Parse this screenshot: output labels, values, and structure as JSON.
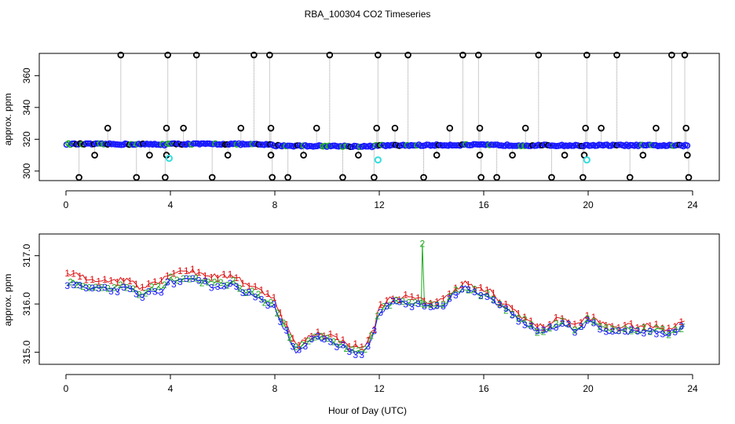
{
  "title": "RBA_100304  CO2 Timeseries",
  "xlabel": "Hour of Day (UTC)",
  "chart_data": [
    {
      "type": "scatter",
      "panel": "top",
      "ylabel": "approx. ppm",
      "xlim": [
        0,
        24
      ],
      "ylim": [
        294,
        374
      ],
      "xticks": [
        "0",
        "4",
        "8",
        "12",
        "16",
        "20",
        "24"
      ],
      "yticks": [
        "300",
        "320",
        "340",
        "360"
      ],
      "colors": {
        "black": "#000000",
        "blue": "#1a1aff",
        "green": "#22aa22",
        "cyan": "#33dddd",
        "gray": "#9a9a9a"
      },
      "baseline": [
        [
          0,
          317
        ],
        [
          3.7,
          316.8
        ],
        [
          3.8,
          316.5
        ],
        [
          3.9,
          317
        ],
        [
          6.3,
          317
        ],
        [
          7.9,
          316.5
        ],
        [
          8.0,
          316
        ],
        [
          11.8,
          315.5
        ],
        [
          11.9,
          316
        ],
        [
          15.9,
          316.5
        ],
        [
          16.0,
          316.3
        ],
        [
          19.9,
          316
        ],
        [
          20.0,
          316.2
        ],
        [
          23.8,
          316
        ]
      ],
      "black_outliers": [
        [
          0.5,
          296
        ],
        [
          1.1,
          310
        ],
        [
          1.6,
          327
        ],
        [
          2.1,
          373
        ],
        [
          2.7,
          296
        ],
        [
          3.2,
          310
        ],
        [
          3.8,
          296
        ],
        [
          3.85,
          327
        ],
        [
          3.9,
          373
        ],
        [
          3.85,
          310
        ],
        [
          4.5,
          327
        ],
        [
          5.0,
          373
        ],
        [
          5.6,
          296
        ],
        [
          6.2,
          310
        ],
        [
          6.7,
          327
        ],
        [
          7.2,
          373
        ],
        [
          7.8,
          373
        ],
        [
          7.85,
          327
        ],
        [
          7.9,
          296
        ],
        [
          7.85,
          310
        ],
        [
          8.5,
          296
        ],
        [
          9.1,
          310
        ],
        [
          9.6,
          327
        ],
        [
          10.1,
          373
        ],
        [
          10.6,
          296
        ],
        [
          11.2,
          310
        ],
        [
          11.8,
          296
        ],
        [
          11.9,
          327
        ],
        [
          11.95,
          373
        ],
        [
          12.6,
          327
        ],
        [
          13.1,
          373
        ],
        [
          13.7,
          296
        ],
        [
          14.2,
          310
        ],
        [
          14.7,
          327
        ],
        [
          15.2,
          373
        ],
        [
          15.8,
          373
        ],
        [
          15.85,
          327
        ],
        [
          15.9,
          296
        ],
        [
          15.85,
          310
        ],
        [
          16.5,
          296
        ],
        [
          17.1,
          310
        ],
        [
          17.6,
          327
        ],
        [
          18.1,
          373
        ],
        [
          18.6,
          296
        ],
        [
          19.1,
          310
        ],
        [
          19.8,
          296
        ],
        [
          19.9,
          327
        ],
        [
          19.95,
          373
        ],
        [
          19.85,
          310
        ],
        [
          20.5,
          327
        ],
        [
          21.1,
          373
        ],
        [
          21.6,
          296
        ],
        [
          22.1,
          310
        ],
        [
          22.6,
          327
        ],
        [
          23.2,
          373
        ],
        [
          23.7,
          373
        ],
        [
          23.75,
          327
        ],
        [
          23.8,
          310
        ],
        [
          23.85,
          296
        ]
      ],
      "cyan_points": [
        [
          3.95,
          308
        ],
        [
          11.95,
          307
        ],
        [
          19.95,
          307
        ]
      ]
    },
    {
      "type": "scatter",
      "panel": "bottom",
      "ylabel": "approx. ppm",
      "xlim": [
        0,
        24
      ],
      "ylim": [
        314.75,
        317.45
      ],
      "xticks": [
        "0",
        "4",
        "8",
        "12",
        "16",
        "20",
        "24"
      ],
      "yticks": [
        "315.0",
        "316.0",
        "317.0"
      ],
      "series": [
        {
          "name": "1",
          "color": "#dd1111",
          "offset": 0.15
        },
        {
          "name": "2",
          "color": "#22aa22",
          "offset": 0.0
        },
        {
          "name": "3",
          "color": "#1a1aff",
          "offset": -0.05
        }
      ],
      "profile": [
        [
          0,
          316.45
        ],
        [
          0.5,
          316.45
        ],
        [
          0.8,
          316.35
        ],
        [
          1.5,
          316.35
        ],
        [
          2.5,
          316.35
        ],
        [
          2.8,
          316.2
        ],
        [
          3.3,
          316.3
        ],
        [
          3.7,
          316.35
        ],
        [
          4.0,
          316.5
        ],
        [
          4.5,
          316.55
        ],
        [
          5.0,
          316.5
        ],
        [
          5.5,
          316.45
        ],
        [
          6.0,
          316.4
        ],
        [
          6.5,
          316.45
        ],
        [
          6.8,
          316.3
        ],
        [
          7.2,
          316.2
        ],
        [
          7.5,
          316.1
        ],
        [
          8.0,
          316.0
        ],
        [
          8.2,
          315.7
        ],
        [
          8.5,
          315.4
        ],
        [
          8.8,
          315.05
        ],
        [
          9.0,
          315.1
        ],
        [
          9.5,
          315.3
        ],
        [
          10.0,
          315.3
        ],
        [
          10.5,
          315.15
        ],
        [
          11.0,
          315.05
        ],
        [
          11.3,
          314.98
        ],
        [
          11.5,
          315.1
        ],
        [
          11.8,
          315.4
        ],
        [
          12.0,
          315.85
        ],
        [
          12.5,
          316.05
        ],
        [
          13.0,
          316.05
        ],
        [
          13.5,
          316.0
        ],
        [
          14.0,
          315.95
        ],
        [
          14.5,
          316.0
        ],
        [
          14.8,
          316.2
        ],
        [
          15.3,
          316.35
        ],
        [
          15.8,
          316.2
        ],
        [
          16.2,
          316.2
        ],
        [
          16.5,
          316.0
        ],
        [
          17.0,
          315.85
        ],
        [
          17.5,
          315.65
        ],
        [
          18.0,
          315.45
        ],
        [
          18.3,
          315.45
        ],
        [
          18.7,
          315.55
        ],
        [
          19.0,
          315.65
        ],
        [
          19.5,
          315.45
        ],
        [
          20.0,
          315.65
        ],
        [
          20.5,
          315.5
        ],
        [
          21.0,
          315.45
        ],
        [
          22.0,
          315.45
        ],
        [
          22.5,
          315.45
        ],
        [
          23.0,
          315.4
        ],
        [
          23.7,
          315.55
        ]
      ],
      "spike": {
        "series": "2",
        "x": 13.65,
        "y": 317.25
      }
    }
  ]
}
